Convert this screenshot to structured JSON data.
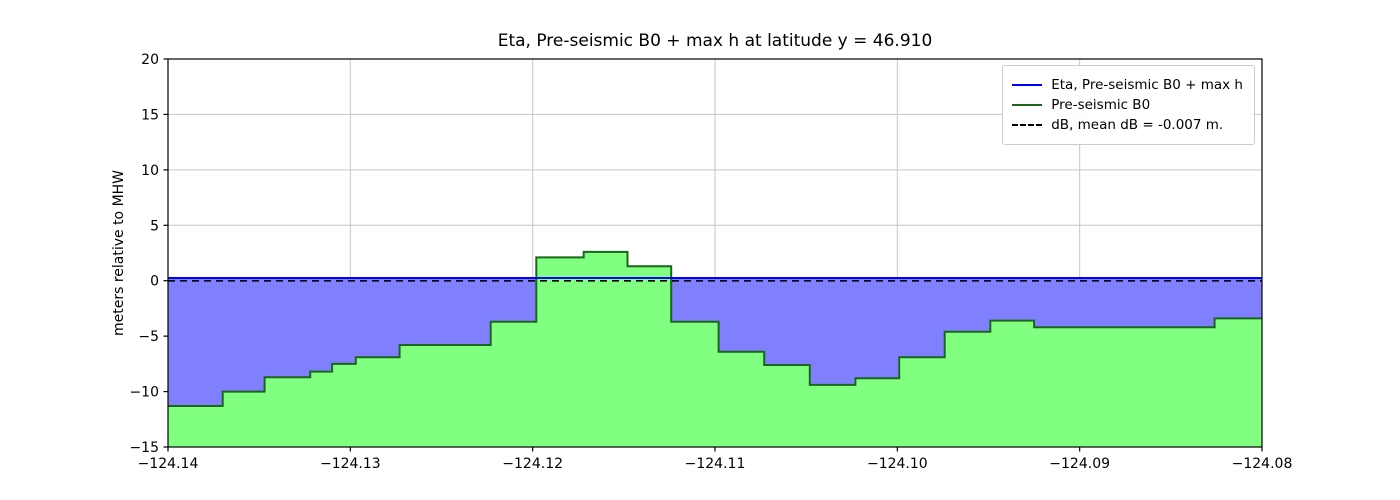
{
  "figure": {
    "title": "Eta, Pre-seismic B0 + max h at latitude y = 46.910",
    "ylabel": "meters relative to MHW"
  },
  "chart_data": {
    "type": "area",
    "title": "Eta, Pre-seismic B0 + max h at latitude y = 46.910",
    "xlabel": "",
    "ylabel": "meters relative to MHW",
    "xlim": [
      -124.14,
      -124.08
    ],
    "ylim": [
      -15,
      20
    ],
    "xticks": [
      -124.14,
      -124.13,
      -124.12,
      -124.11,
      -124.1,
      -124.09,
      -124.08
    ],
    "xtick_labels": [
      "−124.14",
      "−124.13",
      "−124.12",
      "−124.11",
      "−124.10",
      "−124.09",
      "−124.08"
    ],
    "yticks": [
      -15,
      -10,
      -5,
      0,
      5,
      10,
      15,
      20
    ],
    "ytick_labels": [
      "−15",
      "−10",
      "−5",
      "0",
      "5",
      "10",
      "15",
      "20"
    ],
    "grid": true,
    "series": [
      {
        "name": "Eta, Pre-seismic B0 + max h",
        "type": "hline",
        "value": 0.24,
        "color": "#0000ff",
        "style": "solid"
      },
      {
        "name": "Pre-seismic B0",
        "type": "step-area",
        "x_edges": [
          -124.14,
          -124.137,
          -124.1347,
          -124.1322,
          -124.131,
          -124.1297,
          -124.1273,
          -124.1223,
          -124.1198,
          -124.1172,
          -124.1148,
          -124.1124,
          -124.1098,
          -124.1073,
          -124.1048,
          -124.1023,
          -124.0999,
          -124.0974,
          -124.0949,
          -124.0925,
          -124.0826,
          -124.08
        ],
        "values": [
          -11.3,
          -10.0,
          -8.7,
          -8.2,
          -7.5,
          -6.9,
          -5.8,
          -3.7,
          2.1,
          2.6,
          1.3,
          -3.7,
          -6.4,
          -7.6,
          -9.4,
          -8.8,
          -6.9,
          -4.6,
          -3.6,
          -4.2,
          -3.4
        ],
        "line_color": "#1a661a",
        "fill_color": "#80ff80"
      },
      {
        "name": "dB, mean dB = -0.007 m.",
        "type": "hline",
        "value": -0.007,
        "color": "#000000",
        "style": "dashed"
      }
    ],
    "fills": {
      "water_fill_color": "#8080ff"
    },
    "legend": {
      "position": "upper right",
      "entries": [
        {
          "label": "Eta, Pre-seismic B0 + max h",
          "color": "#0000ff",
          "style": "solid"
        },
        {
          "label": "Pre-seismic B0",
          "color": "#1a661a",
          "style": "solid"
        },
        {
          "label": "dB, mean dB = -0.007 m.",
          "color": "#000000",
          "style": "dashed"
        }
      ]
    },
    "grid_color": "#c6c6c6",
    "axis_color": "#000000",
    "background": "#ffffff"
  }
}
